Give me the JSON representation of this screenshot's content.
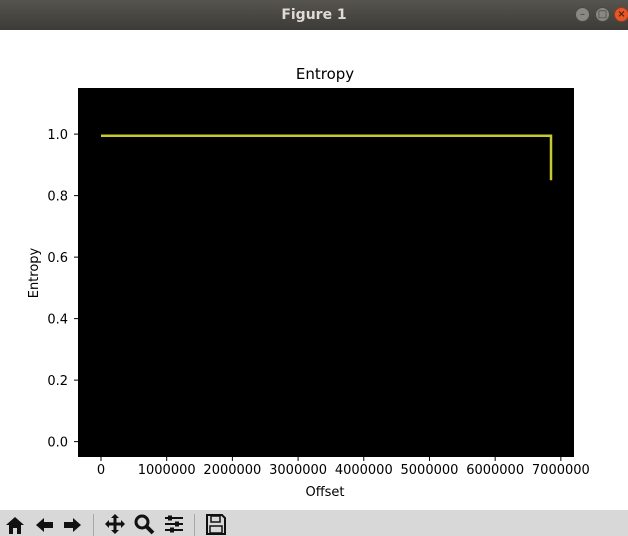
{
  "window": {
    "title": "Figure 1"
  },
  "toolbar": {
    "buttons": [
      {
        "name": "home-button",
        "icon": "home-icon"
      },
      {
        "name": "back-button",
        "icon": "arrow-left-icon"
      },
      {
        "name": "forward-button",
        "icon": "arrow-right-icon"
      },
      {
        "name": "pan-button",
        "icon": "move-icon"
      },
      {
        "name": "zoom-button",
        "icon": "magnifier-icon"
      },
      {
        "name": "configure-subplots-button",
        "icon": "sliders-icon"
      },
      {
        "name": "save-button",
        "icon": "floppy-disk-icon"
      }
    ]
  },
  "chart_data": {
    "type": "line",
    "title": "Entropy",
    "xlabel": "Offset",
    "ylabel": "Entropy",
    "xlim": [
      -350000,
      7200000
    ],
    "ylim": [
      -0.05,
      1.15
    ],
    "xticks": [
      0,
      1000000,
      2000000,
      3000000,
      4000000,
      5000000,
      6000000,
      7000000
    ],
    "xtick_labels": [
      "0",
      "1000000",
      "2000000",
      "3000000",
      "4000000",
      "5000000",
      "6000000",
      "7000000"
    ],
    "yticks": [
      0.0,
      0.2,
      0.4,
      0.6,
      0.8,
      1.0
    ],
    "ytick_labels": [
      "0.0",
      "0.2",
      "0.4",
      "0.6",
      "0.8",
      "1.0"
    ],
    "background": "#000000",
    "line_color": "#c8c832",
    "grid": false,
    "series": [
      {
        "x": [
          0,
          1000000,
          2000000,
          3000000,
          4000000,
          5000000,
          6000000,
          6850000,
          6850000
        ],
        "y": [
          0.995,
          0.995,
          0.995,
          0.995,
          0.995,
          0.995,
          0.995,
          0.995,
          0.85
        ]
      }
    ]
  }
}
